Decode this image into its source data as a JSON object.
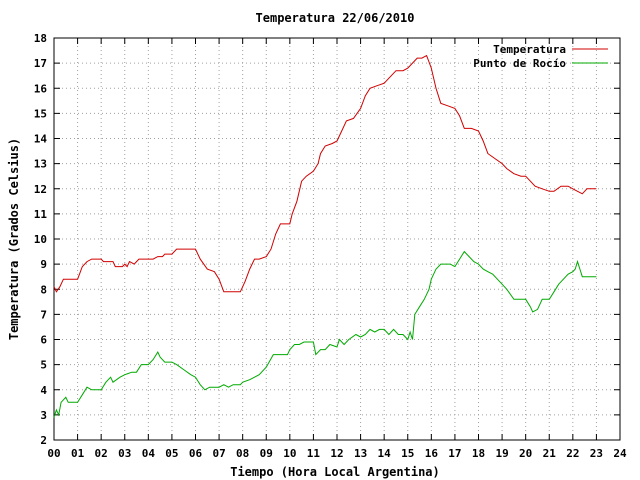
{
  "chart_data": {
    "type": "line",
    "title": "Temperatura 22/06/2010",
    "xlabel": "Tiempo (Hora Local Argentina)",
    "ylabel": "Temperatura (Grados Celsius)",
    "xlim": [
      0,
      24
    ],
    "ylim": [
      2,
      18
    ],
    "x_tick_labels": [
      "00",
      "01",
      "02",
      "03",
      "04",
      "05",
      "06",
      "07",
      "08",
      "09",
      "10",
      "11",
      "12",
      "13",
      "14",
      "15",
      "16",
      "17",
      "18",
      "19",
      "20",
      "21",
      "22",
      "23",
      "24"
    ],
    "y_ticks": [
      2,
      3,
      4,
      5,
      6,
      7,
      8,
      9,
      10,
      11,
      12,
      13,
      14,
      15,
      16,
      17,
      18
    ],
    "grid": true,
    "legend_position": "top-right",
    "series": [
      {
        "name": "Temperatura",
        "color": "#d00000",
        "points": [
          [
            0.0,
            8.1
          ],
          [
            0.1,
            7.9
          ],
          [
            0.25,
            8.1
          ],
          [
            0.4,
            8.4
          ],
          [
            0.7,
            8.4
          ],
          [
            1.0,
            8.4
          ],
          [
            1.2,
            8.9
          ],
          [
            1.4,
            9.1
          ],
          [
            1.6,
            9.2
          ],
          [
            2.0,
            9.2
          ],
          [
            2.1,
            9.1
          ],
          [
            2.5,
            9.1
          ],
          [
            2.6,
            8.9
          ],
          [
            2.9,
            8.9
          ],
          [
            3.0,
            9.0
          ],
          [
            3.1,
            8.9
          ],
          [
            3.2,
            9.1
          ],
          [
            3.4,
            9.0
          ],
          [
            3.6,
            9.2
          ],
          [
            4.0,
            9.2
          ],
          [
            4.2,
            9.2
          ],
          [
            4.4,
            9.3
          ],
          [
            4.6,
            9.3
          ],
          [
            4.7,
            9.4
          ],
          [
            5.0,
            9.4
          ],
          [
            5.2,
            9.6
          ],
          [
            5.5,
            9.6
          ],
          [
            6.0,
            9.6
          ],
          [
            6.2,
            9.2
          ],
          [
            6.5,
            8.8
          ],
          [
            6.8,
            8.7
          ],
          [
            7.0,
            8.4
          ],
          [
            7.2,
            7.9
          ],
          [
            7.5,
            7.9
          ],
          [
            7.9,
            7.9
          ],
          [
            8.1,
            8.3
          ],
          [
            8.3,
            8.8
          ],
          [
            8.5,
            9.2
          ],
          [
            8.7,
            9.2
          ],
          [
            9.0,
            9.3
          ],
          [
            9.2,
            9.6
          ],
          [
            9.4,
            10.2
          ],
          [
            9.6,
            10.6
          ],
          [
            9.8,
            10.6
          ],
          [
            10.0,
            10.6
          ],
          [
            10.1,
            11.0
          ],
          [
            10.3,
            11.5
          ],
          [
            10.5,
            12.3
          ],
          [
            10.7,
            12.5
          ],
          [
            11.0,
            12.7
          ],
          [
            11.2,
            13.0
          ],
          [
            11.3,
            13.4
          ],
          [
            11.5,
            13.7
          ],
          [
            11.8,
            13.8
          ],
          [
            12.0,
            13.9
          ],
          [
            12.2,
            14.3
          ],
          [
            12.4,
            14.7
          ],
          [
            12.7,
            14.8
          ],
          [
            13.0,
            15.2
          ],
          [
            13.2,
            15.7
          ],
          [
            13.4,
            16.0
          ],
          [
            13.7,
            16.1
          ],
          [
            14.0,
            16.2
          ],
          [
            14.2,
            16.4
          ],
          [
            14.5,
            16.7
          ],
          [
            14.8,
            16.7
          ],
          [
            15.0,
            16.8
          ],
          [
            15.2,
            17.0
          ],
          [
            15.4,
            17.2
          ],
          [
            15.6,
            17.2
          ],
          [
            15.8,
            17.3
          ],
          [
            16.0,
            16.8
          ],
          [
            16.2,
            16.0
          ],
          [
            16.4,
            15.4
          ],
          [
            16.7,
            15.3
          ],
          [
            17.0,
            15.2
          ],
          [
            17.2,
            14.9
          ],
          [
            17.4,
            14.4
          ],
          [
            17.7,
            14.4
          ],
          [
            18.0,
            14.3
          ],
          [
            18.2,
            13.9
          ],
          [
            18.4,
            13.4
          ],
          [
            18.7,
            13.2
          ],
          [
            19.0,
            13.0
          ],
          [
            19.2,
            12.8
          ],
          [
            19.5,
            12.6
          ],
          [
            19.8,
            12.5
          ],
          [
            20.0,
            12.5
          ],
          [
            20.2,
            12.3
          ],
          [
            20.4,
            12.1
          ],
          [
            20.7,
            12.0
          ],
          [
            21.0,
            11.9
          ],
          [
            21.2,
            11.9
          ],
          [
            21.5,
            12.1
          ],
          [
            21.8,
            12.1
          ],
          [
            22.0,
            12.0
          ],
          [
            22.2,
            11.9
          ],
          [
            22.4,
            11.8
          ],
          [
            22.5,
            11.9
          ],
          [
            22.6,
            12.0
          ],
          [
            23.0,
            12.0
          ]
        ]
      },
      {
        "name": "Punto de Rocío",
        "color": "#00aa00",
        "points": [
          [
            0.0,
            2.9
          ],
          [
            0.1,
            3.2
          ],
          [
            0.2,
            3.0
          ],
          [
            0.3,
            3.5
          ],
          [
            0.5,
            3.7
          ],
          [
            0.6,
            3.5
          ],
          [
            1.0,
            3.5
          ],
          [
            1.2,
            3.8
          ],
          [
            1.4,
            4.1
          ],
          [
            1.6,
            4.0
          ],
          [
            2.0,
            4.0
          ],
          [
            2.2,
            4.3
          ],
          [
            2.4,
            4.5
          ],
          [
            2.5,
            4.3
          ],
          [
            2.8,
            4.5
          ],
          [
            3.0,
            4.6
          ],
          [
            3.3,
            4.7
          ],
          [
            3.5,
            4.7
          ],
          [
            3.7,
            5.0
          ],
          [
            4.0,
            5.0
          ],
          [
            4.2,
            5.2
          ],
          [
            4.4,
            5.5
          ],
          [
            4.5,
            5.3
          ],
          [
            4.7,
            5.1
          ],
          [
            5.0,
            5.1
          ],
          [
            5.2,
            5.0
          ],
          [
            5.5,
            4.8
          ],
          [
            5.8,
            4.6
          ],
          [
            6.0,
            4.5
          ],
          [
            6.2,
            4.2
          ],
          [
            6.4,
            4.0
          ],
          [
            6.6,
            4.1
          ],
          [
            7.0,
            4.1
          ],
          [
            7.2,
            4.2
          ],
          [
            7.4,
            4.1
          ],
          [
            7.6,
            4.2
          ],
          [
            7.9,
            4.2
          ],
          [
            8.0,
            4.3
          ],
          [
            8.3,
            4.4
          ],
          [
            8.5,
            4.5
          ],
          [
            8.7,
            4.6
          ],
          [
            9.0,
            4.9
          ],
          [
            9.3,
            5.4
          ],
          [
            9.6,
            5.4
          ],
          [
            9.9,
            5.4
          ],
          [
            10.0,
            5.6
          ],
          [
            10.2,
            5.8
          ],
          [
            10.4,
            5.8
          ],
          [
            10.6,
            5.9
          ],
          [
            10.8,
            5.9
          ],
          [
            11.0,
            5.9
          ],
          [
            11.1,
            5.4
          ],
          [
            11.3,
            5.6
          ],
          [
            11.5,
            5.6
          ],
          [
            11.7,
            5.8
          ],
          [
            12.0,
            5.7
          ],
          [
            12.1,
            6.0
          ],
          [
            12.3,
            5.8
          ],
          [
            12.5,
            6.0
          ],
          [
            12.8,
            6.2
          ],
          [
            13.0,
            6.1
          ],
          [
            13.2,
            6.2
          ],
          [
            13.4,
            6.4
          ],
          [
            13.6,
            6.3
          ],
          [
            13.8,
            6.4
          ],
          [
            14.0,
            6.4
          ],
          [
            14.2,
            6.2
          ],
          [
            14.4,
            6.4
          ],
          [
            14.6,
            6.2
          ],
          [
            14.8,
            6.2
          ],
          [
            15.0,
            6.0
          ],
          [
            15.1,
            6.3
          ],
          [
            15.2,
            6.0
          ],
          [
            15.3,
            7.0
          ],
          [
            15.5,
            7.3
          ],
          [
            15.7,
            7.6
          ],
          [
            15.9,
            8.0
          ],
          [
            16.0,
            8.4
          ],
          [
            16.2,
            8.8
          ],
          [
            16.4,
            9.0
          ],
          [
            16.6,
            9.0
          ],
          [
            16.8,
            9.0
          ],
          [
            17.0,
            8.9
          ],
          [
            17.2,
            9.2
          ],
          [
            17.4,
            9.5
          ],
          [
            17.6,
            9.3
          ],
          [
            17.8,
            9.1
          ],
          [
            18.0,
            9.0
          ],
          [
            18.2,
            8.8
          ],
          [
            18.4,
            8.7
          ],
          [
            18.6,
            8.6
          ],
          [
            18.8,
            8.4
          ],
          [
            19.0,
            8.2
          ],
          [
            19.2,
            8.0
          ],
          [
            19.5,
            7.6
          ],
          [
            19.8,
            7.6
          ],
          [
            20.0,
            7.6
          ],
          [
            20.2,
            7.3
          ],
          [
            20.3,
            7.1
          ],
          [
            20.5,
            7.2
          ],
          [
            20.7,
            7.6
          ],
          [
            21.0,
            7.6
          ],
          [
            21.2,
            7.9
          ],
          [
            21.4,
            8.2
          ],
          [
            21.6,
            8.4
          ],
          [
            21.8,
            8.6
          ],
          [
            22.0,
            8.7
          ],
          [
            22.1,
            8.8
          ],
          [
            22.2,
            9.1
          ],
          [
            22.3,
            8.8
          ],
          [
            22.4,
            8.5
          ],
          [
            23.0,
            8.5
          ]
        ]
      }
    ]
  }
}
